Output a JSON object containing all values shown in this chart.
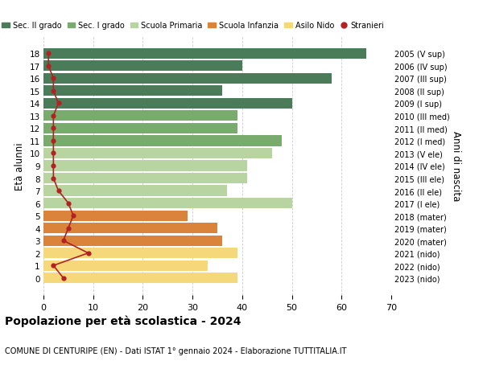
{
  "ages": [
    18,
    17,
    16,
    15,
    14,
    13,
    12,
    11,
    10,
    9,
    8,
    7,
    6,
    5,
    4,
    3,
    2,
    1,
    0
  ],
  "bar_values": [
    65,
    40,
    58,
    36,
    50,
    39,
    39,
    48,
    46,
    41,
    41,
    37,
    50,
    29,
    35,
    36,
    39,
    33,
    39
  ],
  "stranieri_values": [
    1,
    1,
    2,
    2,
    3,
    2,
    2,
    2,
    2,
    2,
    2,
    3,
    5,
    6,
    5,
    4,
    9,
    2,
    4
  ],
  "bar_colors": [
    "#4a7c59",
    "#4a7c59",
    "#4a7c59",
    "#4a7c59",
    "#4a7c59",
    "#7aab6e",
    "#7aab6e",
    "#7aab6e",
    "#b8d4a0",
    "#b8d4a0",
    "#b8d4a0",
    "#b8d4a0",
    "#b8d4a0",
    "#d9843a",
    "#d9843a",
    "#d9843a",
    "#f5d87a",
    "#f5d87a",
    "#f5d87a"
  ],
  "right_labels": [
    "2005 (V sup)",
    "2006 (IV sup)",
    "2007 (III sup)",
    "2008 (II sup)",
    "2009 (I sup)",
    "2010 (III med)",
    "2011 (II med)",
    "2012 (I med)",
    "2013 (V ele)",
    "2014 (IV ele)",
    "2015 (III ele)",
    "2016 (II ele)",
    "2017 (I ele)",
    "2018 (mater)",
    "2019 (mater)",
    "2020 (mater)",
    "2021 (nido)",
    "2022 (nido)",
    "2023 (nido)"
  ],
  "legend_labels": [
    "Sec. II grado",
    "Sec. I grado",
    "Scuola Primaria",
    "Scuola Infanzia",
    "Asilo Nido",
    "Stranieri"
  ],
  "legend_colors": [
    "#4a7c59",
    "#7aab6e",
    "#b8d4a0",
    "#d9843a",
    "#f5d87a",
    "#b22222"
  ],
  "ylabel_right": "Anni di nascita",
  "title": "Popolazione per eta scolastica - 2024",
  "title_bold": true,
  "subtitle": "COMUNE DI CENTURIPE (EN) - Dati ISTAT 1° gennaio 2024 - Elaborazione TUTTITALIA.IT",
  "xlim": [
    0,
    70
  ],
  "stranieri_color": "#b22222",
  "background_color": "#ffffff",
  "grid_color": "#cccccc"
}
